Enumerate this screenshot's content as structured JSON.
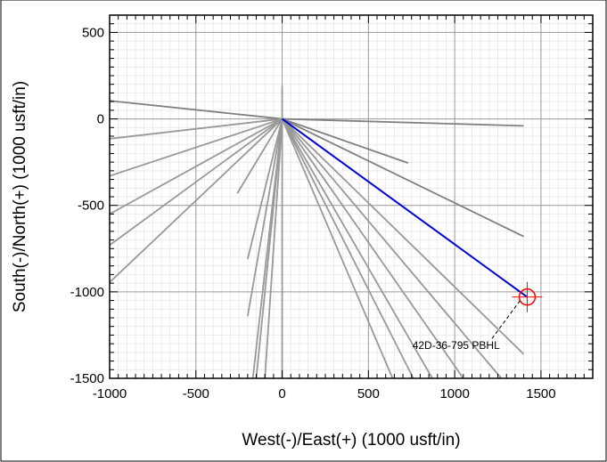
{
  "chart_data": {
    "type": "line",
    "title": "",
    "xlabel": "West(-)/East(+) (1000 usft/in)",
    "ylabel": "South(-)/North(+) (1000 usft/in)",
    "xlim": [
      -1000,
      1800
    ],
    "ylim": [
      -1500,
      600
    ],
    "x_ticks": [
      -1000,
      -500,
      0,
      500,
      1000,
      1500
    ],
    "y_ticks": [
      500,
      0,
      -500,
      -1000,
      -1500
    ],
    "x_tick_labels": [
      "-1000",
      "-500",
      "0",
      "500",
      "1000",
      "1500"
    ],
    "y_tick_labels": [
      "500",
      "0",
      "-500",
      "-1000",
      "-1500"
    ],
    "grid": true,
    "minor_grid_step": 50,
    "origin": [
      0,
      0
    ],
    "offset_wells": [
      {
        "color": "#808080",
        "x": [
          0,
          -1000
        ],
        "y": [
          0,
          105
        ]
      },
      {
        "color": "#808080",
        "x": [
          0,
          1400
        ],
        "y": [
          0,
          -40
        ]
      },
      {
        "color": "#808080",
        "x": [
          0,
          730
        ],
        "y": [
          0,
          -255
        ]
      },
      {
        "color": "#808080",
        "x": [
          0,
          1400
        ],
        "y": [
          0,
          -680
        ]
      },
      {
        "color": "#999999",
        "x": [
          0,
          -1000
        ],
        "y": [
          0,
          -115
        ]
      },
      {
        "color": "#999999",
        "x": [
          0,
          -1000
        ],
        "y": [
          0,
          -330
        ]
      },
      {
        "color": "#999999",
        "x": [
          0,
          -1000
        ],
        "y": [
          0,
          -550
        ]
      },
      {
        "color": "#999999",
        "x": [
          0,
          -1000
        ],
        "y": [
          0,
          -730
        ]
      },
      {
        "color": "#999999",
        "x": [
          0,
          -1000
        ],
        "y": [
          0,
          -945
        ]
      },
      {
        "color": "#999999",
        "x": [
          0,
          -260
        ],
        "y": [
          0,
          -430
        ]
      },
      {
        "color": "#999999",
        "x": [
          0,
          -200
        ],
        "y": [
          0,
          -810
        ]
      },
      {
        "color": "#999999",
        "x": [
          0,
          -200
        ],
        "y": [
          0,
          -1140
        ]
      },
      {
        "color": "#999999",
        "x": [
          0,
          -170
        ],
        "y": [
          0,
          -1500
        ]
      },
      {
        "color": "#999999",
        "x": [
          0,
          -150
        ],
        "y": [
          0,
          -1500
        ]
      },
      {
        "color": "#999999",
        "x": [
          0,
          -100
        ],
        "y": [
          0,
          -1500
        ]
      },
      {
        "color": "#999999",
        "x": [
          0,
          0
        ],
        "y": [
          190,
          -1500
        ]
      },
      {
        "color": "#999999",
        "x": [
          0,
          640
        ],
        "y": [
          0,
          -1500
        ]
      },
      {
        "color": "#999999",
        "x": [
          0,
          760
        ],
        "y": [
          0,
          -1500
        ]
      },
      {
        "color": "#999999",
        "x": [
          0,
          870
        ],
        "y": [
          0,
          -1500
        ]
      },
      {
        "color": "#999999",
        "x": [
          0,
          1050
        ],
        "y": [
          0,
          -1500
        ]
      },
      {
        "color": "#999999",
        "x": [
          0,
          1270
        ],
        "y": [
          0,
          -1500
        ]
      },
      {
        "color": "#999999",
        "x": [
          0,
          1400
        ],
        "y": [
          0,
          -1360
        ]
      }
    ],
    "subject_well": {
      "color": "#0000dd",
      "x": [
        0,
        1420
      ],
      "y": [
        0,
        -1030
      ]
    },
    "target": {
      "label": "42D-36-795 PBHL",
      "x": 1420,
      "y": -1030,
      "color": "#ff0000",
      "label_x": 600,
      "label_y": -1330
    }
  }
}
